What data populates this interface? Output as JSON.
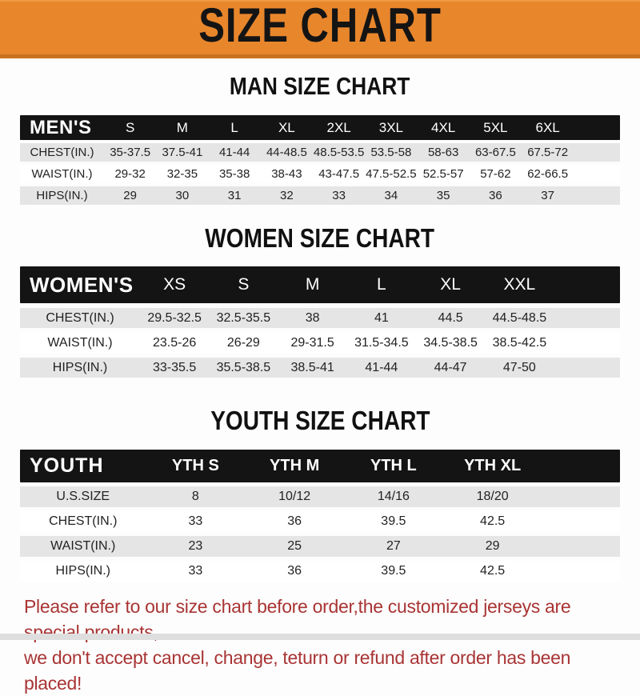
{
  "banner": {
    "title": "SIZE CHART",
    "bg_color": "#E8862C",
    "text_color": "#141414"
  },
  "colors": {
    "table_header_bg": "#141414",
    "table_header_text": "#ffffff",
    "row_shade": "#e5e5e5",
    "row_plain": "#ffffff",
    "footer_text": "#a93434"
  },
  "sections": [
    {
      "heading": "MAN SIZE CHART",
      "header_label": "MEN'S",
      "columns": [
        "S",
        "M",
        "L",
        "XL",
        "2XL",
        "3XL",
        "4XL",
        "5XL",
        "6XL"
      ],
      "rows": [
        {
          "label": "CHEST(IN.)",
          "values": [
            "35-37.5",
            "37.5-41",
            "41-44",
            "44-48.5",
            "48.5-53.5",
            "53.5-58",
            "58-63",
            "63-67.5",
            "67.5-72"
          ]
        },
        {
          "label": "WAIST(IN.)",
          "values": [
            "29-32",
            "32-35",
            "35-38",
            "38-43",
            "43-47.5",
            "47.5-52.5",
            "52.5-57",
            "57-62",
            "62-66.5"
          ]
        },
        {
          "label": "HIPS(IN.)",
          "values": [
            "29",
            "30",
            "31",
            "32",
            "33",
            "34",
            "35",
            "36",
            "37"
          ]
        }
      ]
    },
    {
      "heading": "WOMEN SIZE CHART",
      "header_label": "WOMEN'S",
      "columns": [
        "XS",
        "S",
        "M",
        "L",
        "XL",
        "XXL"
      ],
      "rows": [
        {
          "label": "CHEST(IN.)",
          "values": [
            "29.5-32.5",
            "32.5-35.5",
            "38",
            "41",
            "44.5",
            "44.5-48.5"
          ]
        },
        {
          "label": "WAIST(IN.)",
          "values": [
            "23.5-26",
            "26-29",
            "29-31.5",
            "31.5-34.5",
            "34.5-38.5",
            "38.5-42.5"
          ]
        },
        {
          "label": "HIPS(IN.)",
          "values": [
            "33-35.5",
            "35.5-38.5",
            "38.5-41",
            "41-44",
            "44-47",
            "47-50"
          ]
        }
      ]
    },
    {
      "heading": "YOUTH SIZE CHART",
      "header_label": "YOUTH",
      "columns": [
        "YTH S",
        "YTH M",
        "YTH L",
        "YTH XL"
      ],
      "rows": [
        {
          "label": "U.S.SIZE",
          "values": [
            "8",
            "10/12",
            "14/16",
            "18/20"
          ]
        },
        {
          "label": "CHEST(IN.)",
          "values": [
            "33",
            "36",
            "39.5",
            "42.5"
          ]
        },
        {
          "label": "WAIST(IN.)",
          "values": [
            "23",
            "25",
            "27",
            "29"
          ]
        },
        {
          "label": "HIPS(IN.)",
          "values": [
            "33",
            "36",
            "39.5",
            "42.5"
          ]
        }
      ]
    }
  ],
  "footer": {
    "line1": "Please refer to our size chart before order,the customized jerseys are special products,",
    "line2": "we don't accept cancel, change, teturn or refund after order has been placed!"
  }
}
